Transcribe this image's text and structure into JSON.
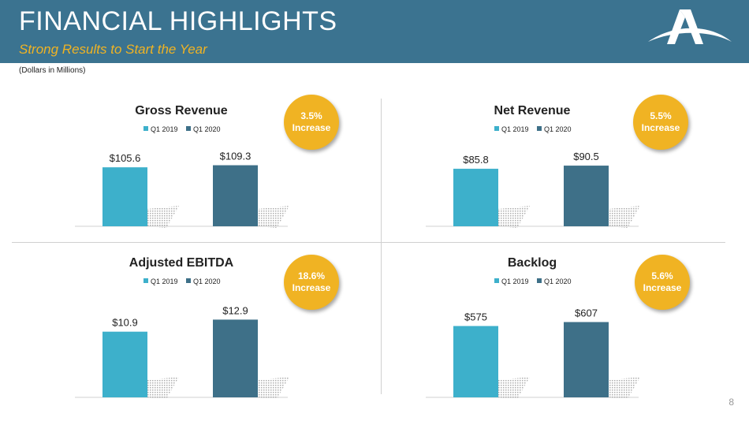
{
  "header": {
    "title": "FINANCIAL HIGHLIGHTS",
    "subtitle": "Strong Results to Start the Year"
  },
  "note": "(Dollars in Millions)",
  "page_number": "8",
  "colors": {
    "q1_2019": "#3db0cb",
    "q1_2020": "#3e7088",
    "badge": "#f0b323",
    "header": "#3b7390"
  },
  "chart_data": [
    {
      "type": "bar",
      "title": "Gross Revenue",
      "categories": [
        "Q1 2019",
        "Q1 2020"
      ],
      "values": [
        105.6,
        109.3
      ],
      "labels": [
        "$105.6",
        "$109.3"
      ],
      "legend": [
        "Q1 2019",
        "Q1 2020"
      ],
      "ylim": [
        0,
        120
      ],
      "grid": false,
      "legend_placement": "top",
      "badge": {
        "line1": "3.5%",
        "line2": "Increase"
      }
    },
    {
      "type": "bar",
      "title": "Net Revenue",
      "categories": [
        "Q1 2019",
        "Q1 2020"
      ],
      "values": [
        85.8,
        90.5
      ],
      "labels": [
        "$85.8",
        "$90.5"
      ],
      "legend": [
        "Q1 2019",
        "Q1 2020"
      ],
      "ylim": [
        0,
        100
      ],
      "grid": false,
      "legend_placement": "top",
      "badge": {
        "line1": "5.5%",
        "line2": "Increase"
      }
    },
    {
      "type": "bar",
      "title": "Adjusted EBITDA",
      "categories": [
        "Q1 2019",
        "Q1 2020"
      ],
      "values": [
        10.9,
        12.9
      ],
      "labels": [
        "$10.9",
        "$12.9"
      ],
      "legend": [
        "Q1 2019",
        "Q1 2020"
      ],
      "ylim": [
        0,
        14
      ],
      "grid": false,
      "legend_placement": "top",
      "badge": {
        "line1": "18.6%",
        "line2": "Increase"
      }
    },
    {
      "type": "bar",
      "title": "Backlog",
      "categories": [
        "Q1 2019",
        "Q1 2020"
      ],
      "values": [
        575,
        607
      ],
      "labels": [
        "$575",
        "$607"
      ],
      "legend": [
        "Q1 2019",
        "Q1 2020"
      ],
      "ylim": [
        0,
        680
      ],
      "grid": false,
      "legend_placement": "top",
      "badge": {
        "line1": "5.6%",
        "line2": "Increase"
      }
    }
  ]
}
